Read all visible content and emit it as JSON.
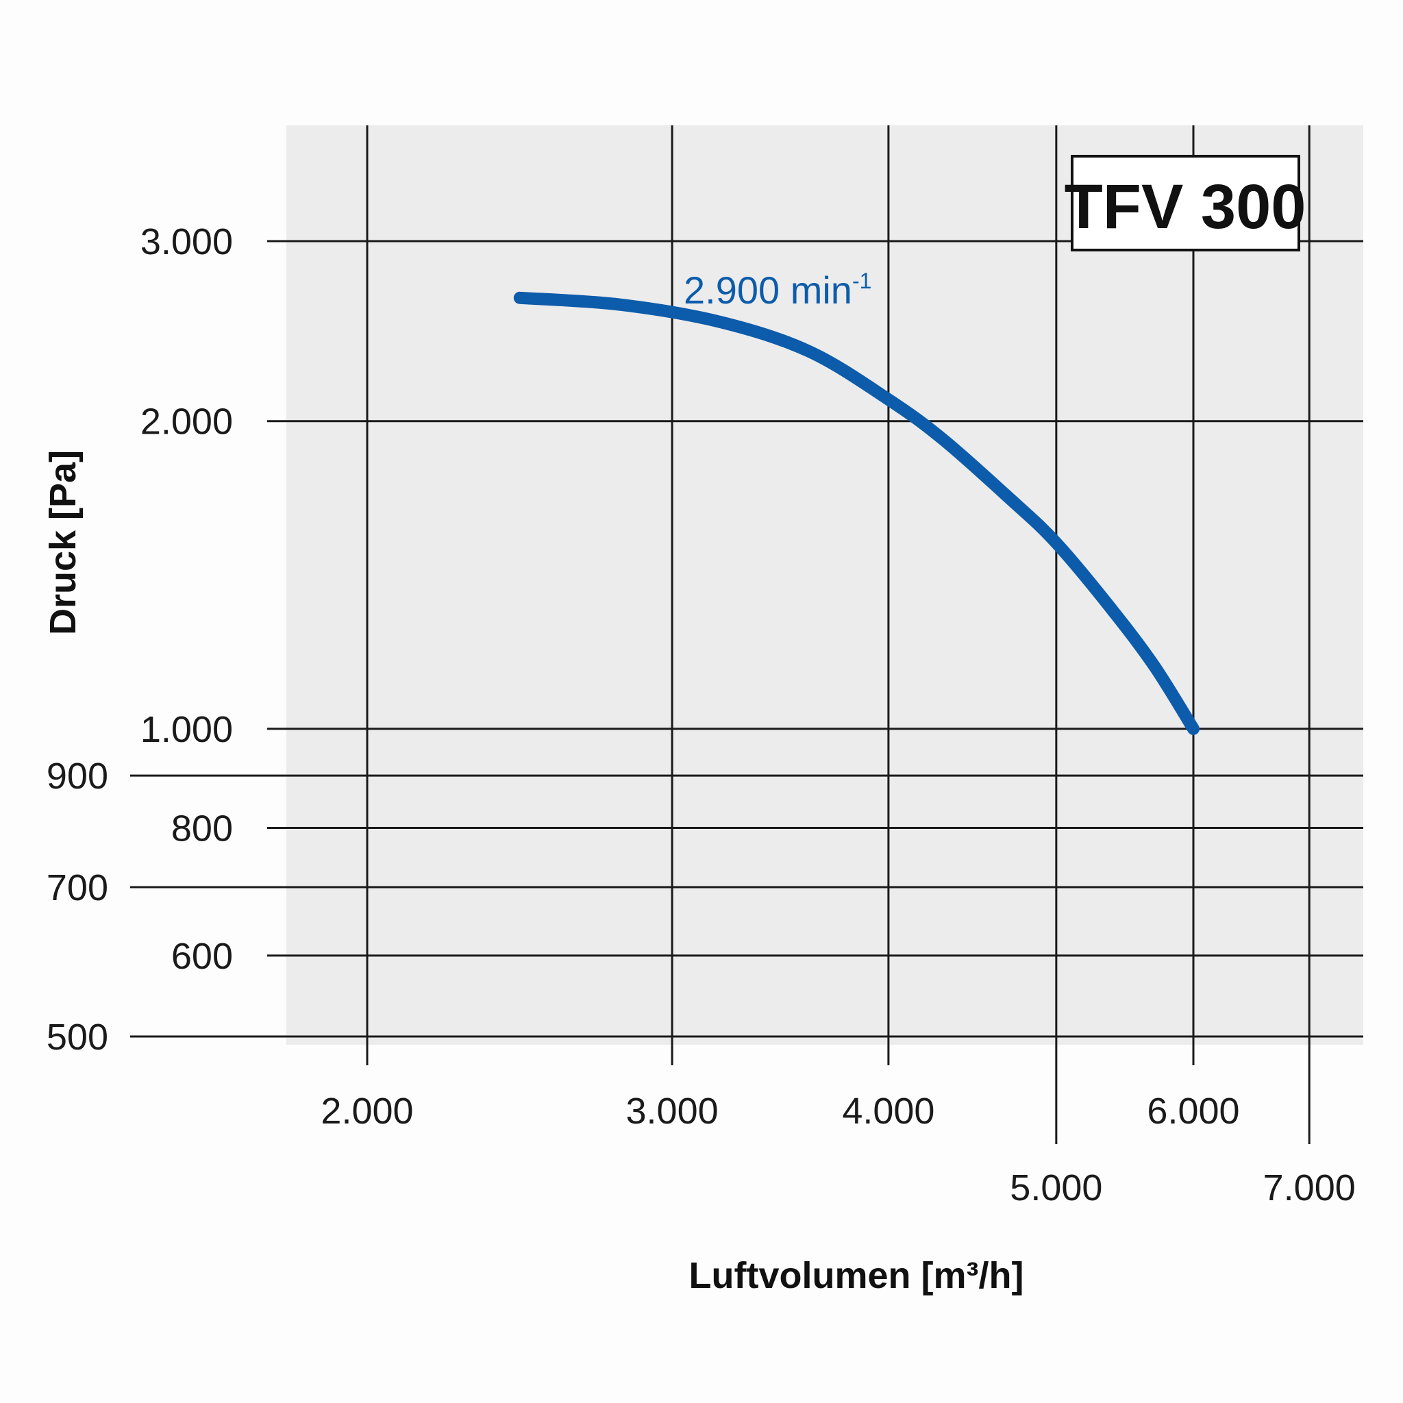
{
  "chart_data": {
    "type": "line",
    "title": "",
    "badge": "TFV 300",
    "xlabel": "Luftvolumen [m³/h]",
    "ylabel": "Druck [Pa]",
    "x_scale": "log",
    "y_scale": "log",
    "xlim": [
      1750,
      7400
    ],
    "ylim": [
      480,
      3600
    ],
    "grid": true,
    "x_ticks": [
      {
        "value": 2000,
        "label": "2.000",
        "row": 1
      },
      {
        "value": 3000,
        "label": "3.000",
        "row": 1
      },
      {
        "value": 4000,
        "label": "4.000",
        "row": 1
      },
      {
        "value": 5000,
        "label": "5.000",
        "row": 2
      },
      {
        "value": 6000,
        "label": "6.000",
        "row": 1
      },
      {
        "value": 7000,
        "label": "7.000",
        "row": 2
      }
    ],
    "y_ticks": [
      {
        "value": 3000,
        "label": "3.000",
        "indent": "inner"
      },
      {
        "value": 2000,
        "label": "2.000",
        "indent": "inner"
      },
      {
        "value": 1000,
        "label": "1.000",
        "indent": "inner"
      },
      {
        "value": 900,
        "label": "900",
        "indent": "outer"
      },
      {
        "value": 800,
        "label": "800",
        "indent": "inner"
      },
      {
        "value": 700,
        "label": "700",
        "indent": "outer"
      },
      {
        "value": 600,
        "label": "600",
        "indent": "inner"
      },
      {
        "value": 500,
        "label": "500",
        "indent": "outer"
      }
    ],
    "series": [
      {
        "label_main": "2.900 min",
        "label_sup": "-1",
        "color": "#0d5cab",
        "x": [
          2450,
          2800,
          3200,
          3600,
          4000,
          4300,
          4700,
          5000,
          5400,
          5700,
          6000
        ],
        "y": [
          2640,
          2600,
          2500,
          2340,
          2100,
          1920,
          1680,
          1520,
          1300,
          1150,
          1000
        ]
      }
    ],
    "colors": {
      "plot_background": "#ececec",
      "page_background": "#fdfdfd",
      "grid": "#1a1a1a",
      "curve": "#0d5cab"
    }
  }
}
